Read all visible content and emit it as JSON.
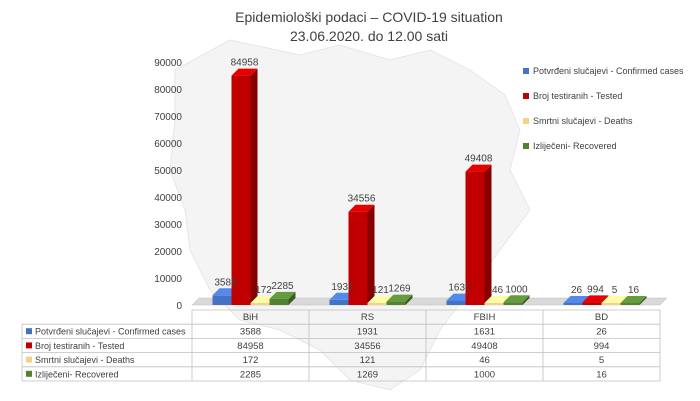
{
  "chart_data": {
    "type": "bar",
    "title": "Epidemiološki podaci – COVID-19 situation",
    "subtitle": "23.06.2020. do 12.00 sati",
    "categories": [
      "BiH",
      "RS",
      "FBIH",
      "BD"
    ],
    "ylim": [
      0,
      90000
    ],
    "yticks": [
      0,
      10000,
      20000,
      30000,
      40000,
      50000,
      60000,
      70000,
      80000,
      90000
    ],
    "legend_position": "right",
    "grid": false,
    "series": [
      {
        "name": "Potvrđeni slučajevi - Confirmed cases",
        "color": "#4472c4",
        "values": [
          3588,
          1931,
          1631,
          26
        ]
      },
      {
        "name": "Broj testiranih - Tested",
        "color": "#c00000",
        "values": [
          84958,
          34556,
          49408,
          994
        ]
      },
      {
        "name": "Smrtni slučajevi - Deaths",
        "color": "#f2d28b",
        "values": [
          172,
          121,
          46,
          5
        ]
      },
      {
        "name": "Izliječeni- Recovered",
        "color": "#548235",
        "values": [
          2285,
          1269,
          1000,
          16
        ]
      }
    ]
  }
}
